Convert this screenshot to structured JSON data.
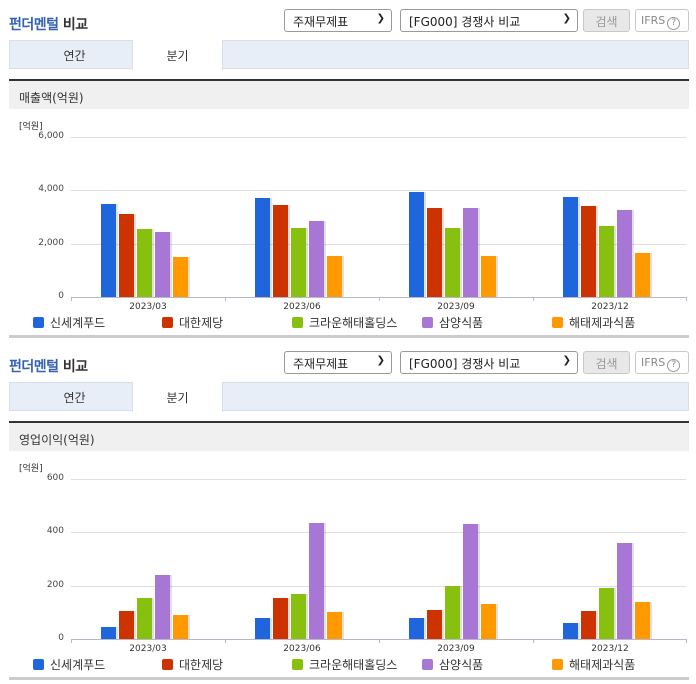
{
  "colors": {
    "신세계푸드": "#1f66dd",
    "대한제당": "#cc3300",
    "크라운해태홀딩스": "#88c010",
    "삼양식품": "#a877d6",
    "해태제과식품": "#ff9900",
    "title_highlight": "#3562b0"
  },
  "sections": [
    {
      "title_highlight": "펀더멘털",
      "title_rest": " 비교",
      "select_type": "주재무제표",
      "select_compare": "[FG000] 경쟁사 비교",
      "search_button": "검색",
      "ifrs_button": "IFRS",
      "ifrs_help": "?",
      "tabs": [
        "연간",
        "분기"
      ],
      "active_tab": "분기",
      "metric_label": "매출액(억원)",
      "unit": "[억원]",
      "yticks": [
        "6,000",
        "4,000",
        "2,000",
        "0"
      ],
      "legend": [
        "신세계푸드",
        "대한제당",
        "크라운해태홀딩스",
        "삼양식품",
        "해태제과식품"
      ],
      "xlabels": [
        "2023/03",
        "2023/06",
        "2023/09",
        "2023/12"
      ]
    },
    {
      "title_highlight": "펀더멘털",
      "title_rest": " 비교",
      "select_type": "주재무제표",
      "select_compare": "[FG000] 경쟁사 비교",
      "search_button": "검색",
      "ifrs_button": "IFRS",
      "ifrs_help": "?",
      "tabs": [
        "연간",
        "분기"
      ],
      "active_tab": "분기",
      "metric_label": "영업이익(억원)",
      "unit": "[억원]",
      "yticks": [
        "600",
        "400",
        "200",
        "0"
      ],
      "legend": [
        "신세계푸드",
        "대한제당",
        "크라운해태홀딩스",
        "삼양식품",
        "해태제과식품"
      ],
      "xlabels": [
        "2023/03",
        "2023/06",
        "2023/09",
        "2023/12"
      ]
    }
  ],
  "chart_data": [
    {
      "type": "bar",
      "title": "매출액(억원)",
      "ylabel": "[억원]",
      "xlabel": "",
      "ylim": [
        0,
        6000
      ],
      "yticks": [
        0,
        2000,
        4000,
        6000
      ],
      "grid": true,
      "legend_position": "bottom",
      "categories": [
        "2023/03",
        "2023/06",
        "2023/09",
        "2023/12"
      ],
      "series": [
        {
          "name": "신세계푸드",
          "color": "#1f66dd",
          "values": [
            3480,
            3710,
            3930,
            3740
          ]
        },
        {
          "name": "대한제당",
          "color": "#cc3300",
          "values": [
            3110,
            3440,
            3330,
            3400
          ]
        },
        {
          "name": "크라운해태홀딩스",
          "color": "#88c010",
          "values": [
            2550,
            2580,
            2580,
            2660
          ]
        },
        {
          "name": "삼양식품",
          "color": "#a877d6",
          "values": [
            2430,
            2850,
            3330,
            3250
          ]
        },
        {
          "name": "해태제과식품",
          "color": "#ff9900",
          "values": [
            1500,
            1540,
            1540,
            1650
          ]
        }
      ]
    },
    {
      "type": "bar",
      "title": "영업이익(억원)",
      "ylabel": "[억원]",
      "xlabel": "",
      "ylim": [
        0,
        600
      ],
      "yticks": [
        0,
        200,
        400,
        600
      ],
      "grid": true,
      "legend_position": "bottom",
      "categories": [
        "2023/03",
        "2023/06",
        "2023/09",
        "2023/12"
      ],
      "series": [
        {
          "name": "신세계푸드",
          "color": "#1f66dd",
          "values": [
            45,
            80,
            80,
            60
          ]
        },
        {
          "name": "대한제당",
          "color": "#cc3300",
          "values": [
            105,
            155,
            110,
            105
          ]
        },
        {
          "name": "크라운해태홀딩스",
          "color": "#88c010",
          "values": [
            155,
            170,
            200,
            190
          ]
        },
        {
          "name": "삼양식품",
          "color": "#a877d6",
          "values": [
            240,
            435,
            430,
            360
          ]
        },
        {
          "name": "해태제과식품",
          "color": "#ff9900",
          "values": [
            90,
            100,
            130,
            140
          ]
        }
      ]
    }
  ]
}
